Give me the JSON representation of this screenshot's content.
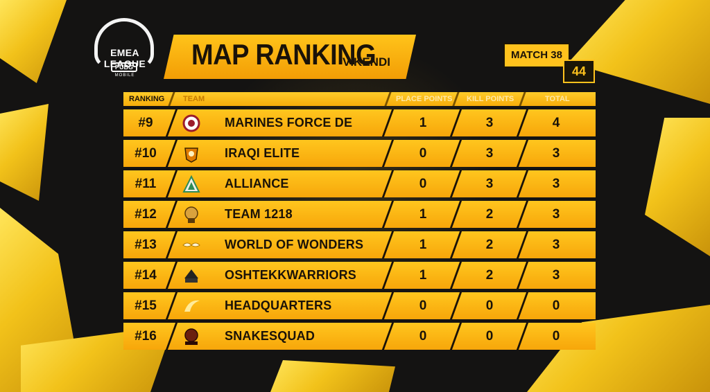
{
  "header": {
    "league_name": "EMEA LEAGUE",
    "brand": "PUBG",
    "brand_sub": "MOBILE",
    "title": "MAP RANKING",
    "map": "VIKENDI",
    "match_label": "MATCH 38",
    "match_number": "44"
  },
  "table": {
    "columns": {
      "ranking": "RANKING",
      "team": "TEAM",
      "place_points": "PLACE POINTS",
      "kill_points": "KILL POINTS",
      "total": "TOTAL"
    },
    "rows": [
      {
        "rank": "#9",
        "team": "MARINES FORCE DE",
        "logo_icon": "marines-force-logo-icon",
        "place": "1",
        "kill": "3",
        "total": "4"
      },
      {
        "rank": "#10",
        "team": "IRAQI ELITE",
        "logo_icon": "iraqi-elite-logo-icon",
        "place": "0",
        "kill": "3",
        "total": "3"
      },
      {
        "rank": "#11",
        "team": "ALLIANCE",
        "logo_icon": "alliance-logo-icon",
        "place": "0",
        "kill": "3",
        "total": "3"
      },
      {
        "rank": "#12",
        "team": "TEAM 1218",
        "logo_icon": "team-1218-logo-icon",
        "place": "1",
        "kill": "2",
        "total": "3"
      },
      {
        "rank": "#13",
        "team": "WORLD OF WONDERS",
        "logo_icon": "world-of-wonders-logo-icon",
        "place": "1",
        "kill": "2",
        "total": "3"
      },
      {
        "rank": "#14",
        "team": "OSHTEKKWARRIORS",
        "logo_icon": "oshtekkwarriors-logo-icon",
        "place": "1",
        "kill": "2",
        "total": "3"
      },
      {
        "rank": "#15",
        "team": "HEADQUARTERS",
        "logo_icon": "headquarters-logo-icon",
        "place": "0",
        "kill": "0",
        "total": "0"
      },
      {
        "rank": "#16",
        "team": "SNAKESQUAD",
        "logo_icon": "snakesquad-logo-icon",
        "place": "0",
        "kill": "0",
        "total": "0"
      }
    ]
  },
  "colors": {
    "accent": "#ffc21d",
    "accent_dark": "#f39d05",
    "background": "#141312",
    "text_dark": "#1a1208"
  }
}
